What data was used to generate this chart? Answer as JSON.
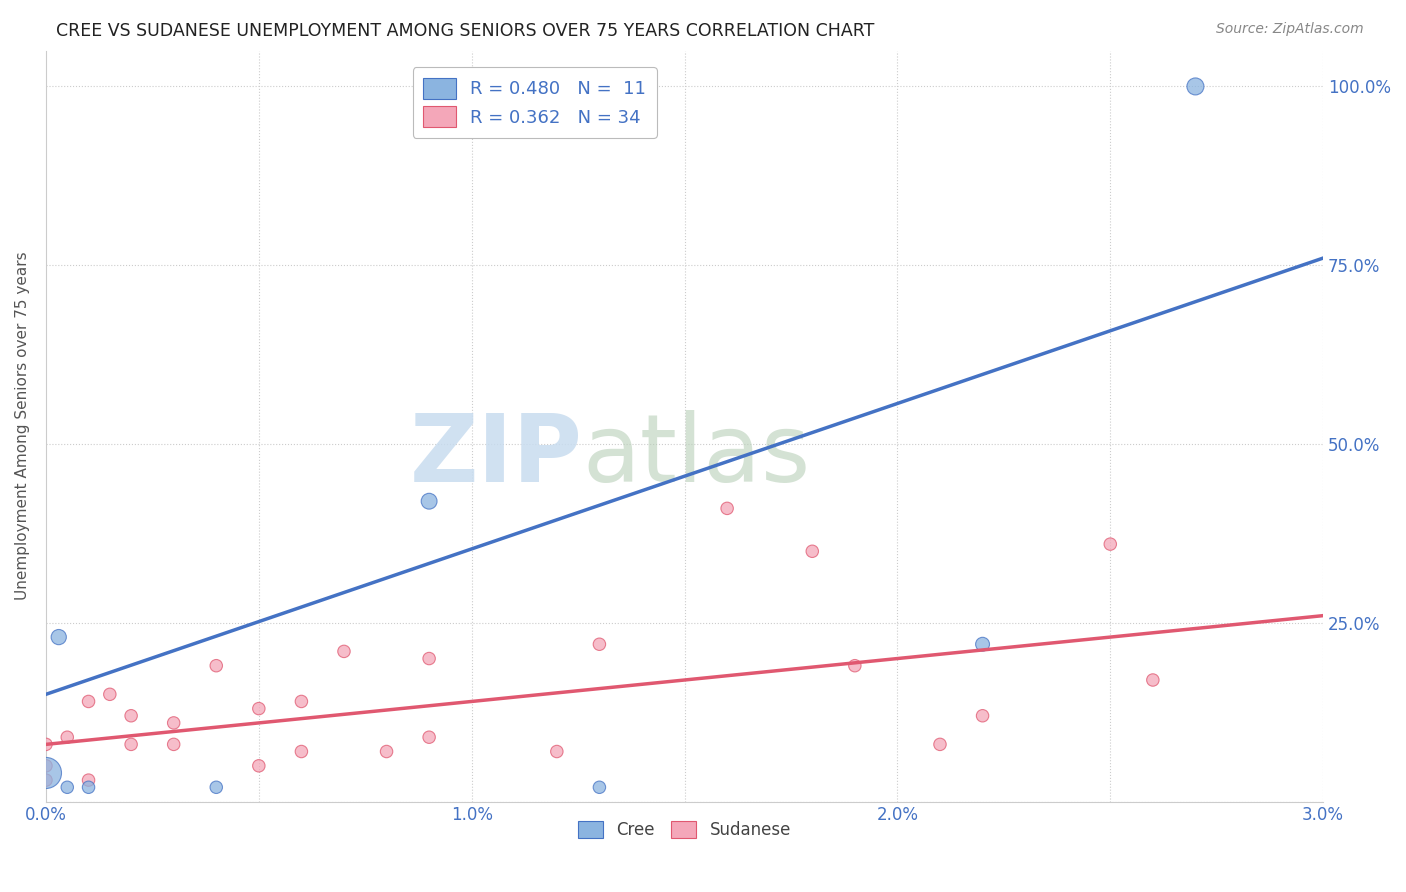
{
  "title": "CREE VS SUDANESE UNEMPLOYMENT AMONG SENIORS OVER 75 YEARS CORRELATION CHART",
  "source": "Source: ZipAtlas.com",
  "ylabel": "Unemployment Among Seniors over 75 years",
  "xlim": [
    0.0,
    0.03
  ],
  "ylim": [
    0.0,
    1.05
  ],
  "xticks": [
    0.0,
    0.005,
    0.01,
    0.015,
    0.02,
    0.025,
    0.03
  ],
  "xticklabels": [
    "0.0%",
    "",
    "1.0%",
    "",
    "2.0%",
    "",
    "3.0%"
  ],
  "ytick_positions": [
    0.0,
    0.25,
    0.5,
    0.75,
    1.0
  ],
  "ytick_labels_right": [
    "",
    "25.0%",
    "50.0%",
    "75.0%",
    "100.0%"
  ],
  "cree_color": "#8BB4E0",
  "cree_line_color": "#4472C4",
  "sudanese_color": "#F4A7B9",
  "sudanese_line_color": "#E05870",
  "watermark_zip": "ZIP",
  "watermark_atlas": "atlas",
  "legend_line1": "R = 0.480   N =  11",
  "legend_line2": "R = 0.362   N = 34",
  "cree_points_x": [
    0.0,
    0.0003,
    0.0005,
    0.001,
    0.004,
    0.009,
    0.013,
    0.022,
    0.027
  ],
  "cree_points_y": [
    0.04,
    0.23,
    0.02,
    0.02,
    0.02,
    0.42,
    0.02,
    0.22,
    1.0
  ],
  "cree_sizes": [
    500,
    120,
    80,
    80,
    80,
    130,
    80,
    100,
    150
  ],
  "sudanese_points_x": [
    0.0,
    0.0,
    0.0,
    0.0005,
    0.001,
    0.001,
    0.0015,
    0.002,
    0.002,
    0.003,
    0.003,
    0.004,
    0.005,
    0.005,
    0.006,
    0.006,
    0.007,
    0.008,
    0.009,
    0.009,
    0.012,
    0.013,
    0.016,
    0.018,
    0.019,
    0.021,
    0.022,
    0.025,
    0.026
  ],
  "sudanese_points_y": [
    0.03,
    0.05,
    0.08,
    0.09,
    0.14,
    0.03,
    0.15,
    0.08,
    0.12,
    0.08,
    0.11,
    0.19,
    0.13,
    0.05,
    0.14,
    0.07,
    0.21,
    0.07,
    0.2,
    0.09,
    0.07,
    0.22,
    0.41,
    0.35,
    0.19,
    0.08,
    0.12,
    0.36,
    0.17
  ],
  "sudanese_sizes": [
    80,
    80,
    80,
    80,
    80,
    80,
    80,
    80,
    80,
    80,
    80,
    80,
    80,
    80,
    80,
    80,
    80,
    80,
    80,
    80,
    80,
    80,
    80,
    80,
    80,
    80,
    80,
    80,
    80
  ],
  "cree_line_x0": 0.0,
  "cree_line_y0": 0.15,
  "cree_line_x1": 0.03,
  "cree_line_y1": 0.76,
  "sud_line_x0": 0.0,
  "sud_line_y0": 0.08,
  "sud_line_x1": 0.03,
  "sud_line_y1": 0.26,
  "grid_color": "#CCCCCC",
  "background_color": "#FFFFFF",
  "tick_color": "#4472C4",
  "label_color": "#555555"
}
